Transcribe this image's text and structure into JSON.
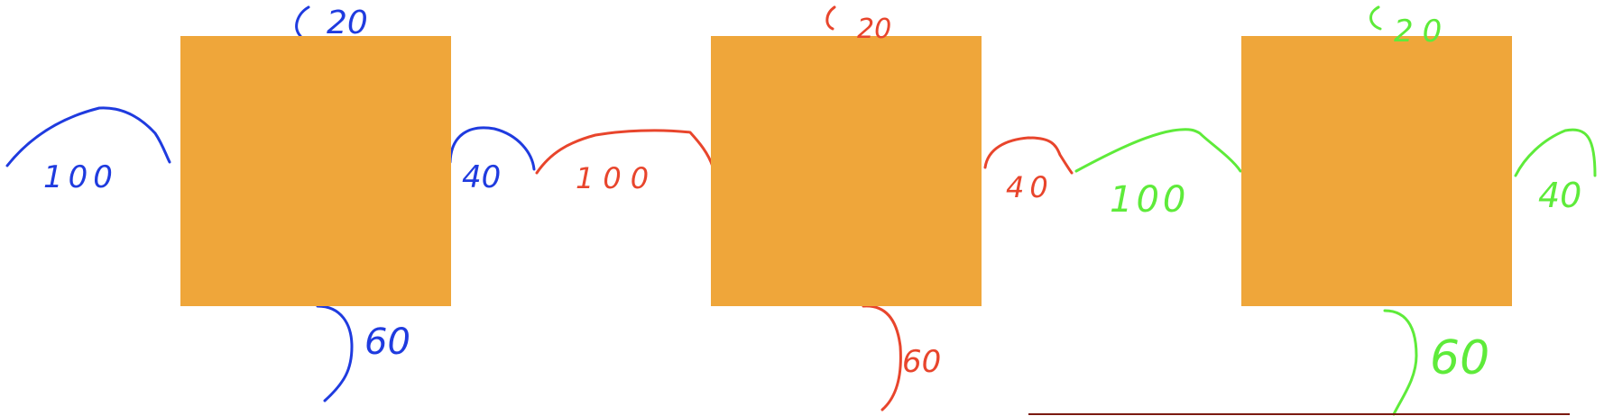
{
  "colors": {
    "box": "#EFA63A",
    "first_annotation": "#1F3BDF",
    "second_annotation": "#E8452C",
    "third_annotation": "#5EEB3A",
    "baseline": "#7A1A10",
    "background": "#FFFFFF"
  },
  "figures": [
    {
      "top_label": "20",
      "left_label": "100",
      "right_label": "40",
      "bottom_label": "60"
    },
    {
      "top_label": "20",
      "left_label": "100",
      "right_label": "40",
      "bottom_label": "60"
    },
    {
      "top_label": "20",
      "left_label": "100",
      "right_label": "40",
      "bottom_label": "60"
    }
  ]
}
